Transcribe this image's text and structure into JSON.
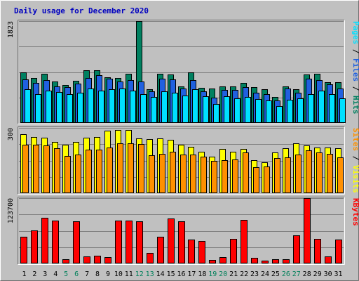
{
  "chart_data": {
    "type": "bar",
    "title": "Daily usage for December 2020",
    "categories": [
      "1",
      "2",
      "3",
      "4",
      "5",
      "6",
      "7",
      "8",
      "9",
      "10",
      "11",
      "12",
      "13",
      "14",
      "15",
      "16",
      "17",
      "18",
      "19",
      "20",
      "21",
      "22",
      "23",
      "24",
      "25",
      "26",
      "27",
      "28",
      "29",
      "30",
      "31"
    ],
    "weekend_days": [
      "5",
      "6",
      "12",
      "13",
      "19",
      "20",
      "26",
      "27"
    ],
    "panels": [
      {
        "id": "hits",
        "max_label": "1823",
        "ylim": [
          0,
          1823
        ],
        "right_label": [
          {
            "text": "Pages",
            "color": "#00e0ff"
          },
          {
            "text": " / ",
            "color": "#000000"
          },
          {
            "text": "Files",
            "color": "#2060e0"
          },
          {
            "text": " / ",
            "color": "#000000"
          },
          {
            "text": "Hits",
            "color": "#008060"
          }
        ],
        "series": [
          {
            "name": "Hits",
            "color": "#008060",
            "values": [
              910,
              800,
              880,
              740,
              680,
              760,
              940,
              940,
              820,
              800,
              880,
              1823,
              600,
              880,
              870,
              660,
              910,
              630,
              620,
              650,
              650,
              720,
              640,
              600,
              460,
              660,
              600,
              870,
              880,
              730,
              730
            ]
          },
          {
            "name": "Files",
            "color": "#2060e0",
            "values": [
              780,
              720,
              770,
              660,
              640,
              700,
              810,
              860,
              790,
              740,
              770,
              740,
              560,
              790,
              780,
              610,
              770,
              560,
              450,
              590,
              590,
              640,
              540,
              520,
              400,
              610,
              540,
              790,
              770,
              690,
              620
            ]
          },
          {
            "name": "Pages",
            "color": "#00e0ff",
            "values": [
              600,
              510,
              580,
              550,
              510,
              540,
              610,
              580,
              600,
              620,
              580,
              520,
              470,
              560,
              540,
              490,
              600,
              480,
              340,
              480,
              440,
              460,
              430,
              400,
              300,
              420,
              440,
              510,
              580,
              520,
              440
            ]
          }
        ]
      },
      {
        "id": "visits",
        "max_label": "300",
        "ylim": [
          0,
          300
        ],
        "right_label": [
          {
            "text": "Sites",
            "color": "#ff9000"
          },
          {
            "text": " / ",
            "color": "#000000"
          },
          {
            "text": "Visits",
            "color": "#ffff00"
          }
        ],
        "series": [
          {
            "name": "Visits",
            "color": "#ffff00",
            "values": [
              272,
              257,
              254,
              236,
              224,
              236,
              255,
              257,
              286,
              290,
              290,
              250,
              248,
              250,
              244,
              222,
              213,
              189,
              169,
              204,
              190,
              204,
              150,
              142,
              186,
              207,
              230,
              220,
              210,
              210,
              205
            ]
          },
          {
            "name": "Sites",
            "color": "#ff9000",
            "values": [
              221,
              221,
              218,
              207,
              172,
              177,
              200,
              200,
              209,
              230,
              228,
              226,
              174,
              180,
              189,
              179,
              176,
              168,
              148,
              150,
              155,
              186,
              120,
              122,
              160,
              166,
              178,
              196,
              188,
              181,
              165
            ]
          }
        ]
      },
      {
        "id": "kbytes",
        "max_label": "123700",
        "ylim": [
          0,
          123700
        ],
        "right_label": [
          {
            "text": "KBytes",
            "color": "#ff0000"
          }
        ],
        "series": [
          {
            "name": "KBytes",
            "color": "#ff0000",
            "values": [
              51000,
              62000,
              86000,
              81000,
              8000,
              80000,
              13000,
              15000,
              12000,
              81000,
              81000,
              80000,
              20000,
              51000,
              85000,
              80000,
              45000,
              43000,
              7000,
              12000,
              46000,
              82000,
              10000,
              5000,
              8000,
              8000,
              53000,
              123700,
              46000,
              13000,
              45000
            ]
          }
        ]
      }
    ]
  }
}
